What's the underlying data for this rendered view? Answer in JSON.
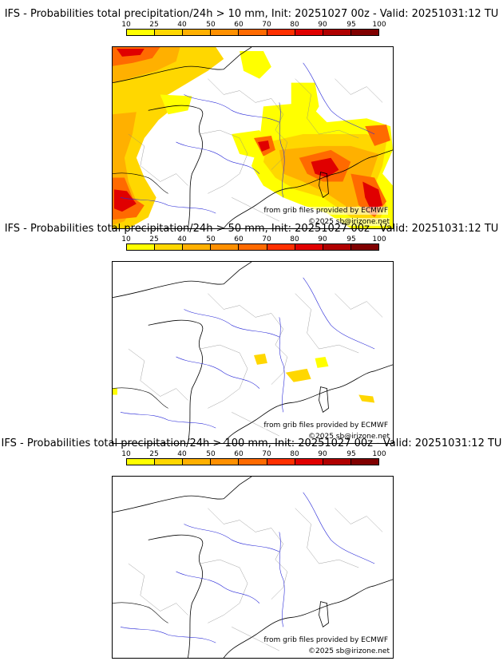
{
  "colorbar": {
    "ticks": [
      "10",
      "25",
      "40",
      "50",
      "60",
      "70",
      "80",
      "90",
      "95",
      "100"
    ],
    "colors": [
      "#ffff00",
      "#ffd700",
      "#ffb000",
      "#ff9000",
      "#ff6a00",
      "#ff3000",
      "#e00000",
      "#b00000",
      "#800000"
    ]
  },
  "panels": [
    {
      "title": "IFS - Probabilities total precipitation/24h > 10 mm, Init: 20251027 00z - Valid: 20251031:12 TU",
      "credit_source": "from grib files provided by ECMWF",
      "credit_copyright": "©2025 sb@irizone.net"
    },
    {
      "title": "IFS - Probabilities total precipitation/24h > 50 mm, Init: 20251027 00z - Valid: 20251031:12 TU",
      "credit_source": "from grib files provided by ECMWF",
      "credit_copyright": "©2025 sb@irizone.net"
    },
    {
      "title": "IFS - Probabilities total precipitation/24h > 100 mm, Init: 20251027 00z - Valid: 20251031:12 TU",
      "credit_source": "from grib files provided by ECMWF",
      "credit_copyright": "©2025 sb@irizone.net"
    }
  ]
}
